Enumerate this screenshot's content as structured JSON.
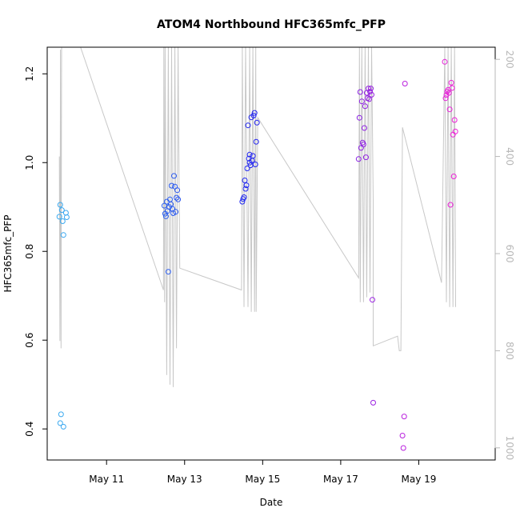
{
  "chart_data": {
    "type": "scatter",
    "title": "ATOM4 Northbound HFC365mfc_PFP",
    "xlabel": "Date",
    "ylabel": "HFC365mfc_PFP",
    "xlim": [
      "2016-05-09T11:30",
      "2016-05-20T23:00"
    ],
    "ylim": [
      0.33,
      1.26
    ],
    "y_ticks": [
      0.4,
      0.6,
      0.8,
      1.0,
      1.2
    ],
    "y_tick_labels": [
      "0.4",
      "0.6",
      "0.8",
      "1.0",
      "1.2"
    ],
    "x_ticks": [
      "2016-05-11",
      "2016-05-13",
      "2016-05-15",
      "2016-05-17",
      "2016-05-19"
    ],
    "x_tick_labels": [
      "May 11",
      "May 13",
      "May 15",
      "May 17",
      "May 19"
    ],
    "y2_ticks": [
      200,
      400,
      600,
      800,
      1000
    ],
    "y2_tick_labels": [
      "200",
      "400",
      "600",
      "800",
      "1000"
    ],
    "y2lim": [
      1025,
      175
    ],
    "grid": false,
    "legend": "none",
    "colors": {
      "line": "#c8c8c8",
      "point_gradient": [
        "#3aaaf0",
        "#2020f0",
        "#f020d8"
      ],
      "axis": "#000000",
      "right_axis": "#b8b8b8"
    },
    "points": [
      [
        "2016-05-09T19:00",
        0.878
      ],
      [
        "2016-05-09T19:30",
        0.905
      ],
      [
        "2016-05-09T20:30",
        0.893
      ],
      [
        "2016-05-09T21:00",
        0.868
      ],
      [
        "2016-05-09T21:30",
        0.837
      ],
      [
        "2016-05-09T23:00",
        0.887
      ],
      [
        "2016-05-09T23:30",
        0.877
      ],
      [
        "2016-05-09T20:00",
        0.433
      ],
      [
        "2016-05-09T19:30",
        0.413
      ],
      [
        "2016-05-09T21:30",
        0.405
      ],
      [
        "2016-05-12T11:30",
        0.903
      ],
      [
        "2016-05-12T12:00",
        0.885
      ],
      [
        "2016-05-12T12:30",
        0.879
      ],
      [
        "2016-05-12T13:00",
        0.912
      ],
      [
        "2016-05-12T13:30",
        0.891
      ],
      [
        "2016-05-12T14:00",
        0.754
      ],
      [
        "2016-05-12T14:30",
        0.9
      ],
      [
        "2016-05-12T15:00",
        0.917
      ],
      [
        "2016-05-12T15:30",
        0.906
      ],
      [
        "2016-05-12T16:00",
        0.948
      ],
      [
        "2016-05-12T16:30",
        0.896
      ],
      [
        "2016-05-12T17:00",
        0.886
      ],
      [
        "2016-05-12T17:30",
        0.97
      ],
      [
        "2016-05-12T18:00",
        0.946
      ],
      [
        "2016-05-12T18:30",
        0.889
      ],
      [
        "2016-05-12T19:00",
        0.921
      ],
      [
        "2016-05-12T19:30",
        0.938
      ],
      [
        "2016-05-12T20:00",
        0.917
      ],
      [
        "2016-05-14T11:30",
        0.912
      ],
      [
        "2016-05-14T12:00",
        0.918
      ],
      [
        "2016-05-14T12:30",
        0.922
      ],
      [
        "2016-05-14T13:00",
        0.96
      ],
      [
        "2016-05-14T13:30",
        0.941
      ],
      [
        "2016-05-14T14:00",
        0.949
      ],
      [
        "2016-05-14T14:30",
        0.987
      ],
      [
        "2016-05-14T15:00",
        1.084
      ],
      [
        "2016-05-14T15:30",
        1.009
      ],
      [
        "2016-05-14T16:00",
        1.018
      ],
      [
        "2016-05-14T16:30",
        0.994
      ],
      [
        "2016-05-14T17:00",
        1.102
      ],
      [
        "2016-05-14T17:30",
        1.005
      ],
      [
        "2016-05-14T18:00",
        1.015
      ],
      [
        "2016-05-14T18:30",
        1.106
      ],
      [
        "2016-05-14T19:00",
        1.112
      ],
      [
        "2016-05-14T19:30",
        0.996
      ],
      [
        "2016-05-14T20:00",
        1.047
      ],
      [
        "2016-05-14T20:30",
        1.09
      ],
      [
        "2016-05-14T16:00",
        1.0
      ],
      [
        "2016-05-17T11:00",
        1.008
      ],
      [
        "2016-05-17T11:30",
        1.101
      ],
      [
        "2016-05-17T12:00",
        1.159
      ],
      [
        "2016-05-17T12:30",
        1.033
      ],
      [
        "2016-05-17T13:00",
        1.138
      ],
      [
        "2016-05-17T13:30",
        1.045
      ],
      [
        "2016-05-17T14:00",
        1.041
      ],
      [
        "2016-05-17T14:30",
        1.078
      ],
      [
        "2016-05-17T15:00",
        1.127
      ],
      [
        "2016-05-17T15:30",
        1.012
      ],
      [
        "2016-05-17T16:00",
        1.157
      ],
      [
        "2016-05-17T16:30",
        1.145
      ],
      [
        "2016-05-17T17:00",
        1.167
      ],
      [
        "2016-05-17T17:30",
        1.143
      ],
      [
        "2016-05-17T18:00",
        1.16
      ],
      [
        "2016-05-17T18:30",
        1.167
      ],
      [
        "2016-05-17T19:00",
        1.153
      ],
      [
        "2016-05-17T19:30",
        0.691
      ],
      [
        "2016-05-17T20:00",
        0.459
      ],
      [
        "2016-05-18T14:00",
        0.385
      ],
      [
        "2016-05-18T15:00",
        0.428
      ],
      [
        "2016-05-18T14:30",
        0.357
      ],
      [
        "2016-05-18T15:30",
        1.178
      ],
      [
        "2016-05-19T16:00",
        1.227
      ],
      [
        "2016-05-19T16:30",
        1.145
      ],
      [
        "2016-05-19T17:00",
        1.152
      ],
      [
        "2016-05-19T17:30",
        1.16
      ],
      [
        "2016-05-19T18:00",
        1.164
      ],
      [
        "2016-05-19T18:30",
        1.157
      ],
      [
        "2016-05-19T19:00",
        1.12
      ],
      [
        "2016-05-19T19:30",
        0.905
      ],
      [
        "2016-05-19T20:00",
        1.18
      ],
      [
        "2016-05-19T20:30",
        1.168
      ],
      [
        "2016-05-19T21:00",
        1.063
      ],
      [
        "2016-05-19T21:30",
        0.969
      ],
      [
        "2016-05-19T22:00",
        1.096
      ],
      [
        "2016-05-19T22:30",
        1.07
      ]
    ],
    "secondary_line": [
      [
        "2016-05-09T19:00",
        400
      ],
      [
        "2016-05-09T19:20",
        780
      ],
      [
        "2016-05-09T19:40",
        180
      ],
      [
        "2016-05-09T20:00",
        795
      ],
      [
        "2016-05-09T20:20",
        175
      ],
      [
        "2016-05-10T08:00",
        175
      ],
      [
        "2016-05-12T11:00",
        675
      ],
      [
        "2016-05-12T11:15",
        175
      ],
      [
        "2016-05-12T11:40",
        700
      ],
      [
        "2016-05-12T12:00",
        175
      ],
      [
        "2016-05-12T13:00",
        850
      ],
      [
        "2016-05-12T14:00",
        175
      ],
      [
        "2016-05-12T15:00",
        870
      ],
      [
        "2016-05-12T16:00",
        175
      ],
      [
        "2016-05-12T17:00",
        875
      ],
      [
        "2016-05-12T18:00",
        175
      ],
      [
        "2016-05-12T19:00",
        795
      ],
      [
        "2016-05-12T20:00",
        175
      ],
      [
        "2016-05-12T21:00",
        630
      ],
      [
        "2016-05-14T11:00",
        675
      ],
      [
        "2016-05-14T11:30",
        175
      ],
      [
        "2016-05-14T12:30",
        710
      ],
      [
        "2016-05-14T13:30",
        175
      ],
      [
        "2016-05-14T15:00",
        710
      ],
      [
        "2016-05-14T16:00",
        175
      ],
      [
        "2016-05-14T17:00",
        720
      ],
      [
        "2016-05-14T18:00",
        175
      ],
      [
        "2016-05-14T19:00",
        720
      ],
      [
        "2016-05-14T19:45",
        175
      ],
      [
        "2016-05-14T20:00",
        720
      ],
      [
        "2016-05-14T21:00",
        320
      ],
      [
        "2016-05-17T11:00",
        650
      ],
      [
        "2016-05-17T11:30",
        175
      ],
      [
        "2016-05-17T12:00",
        700
      ],
      [
        "2016-05-17T13:00",
        175
      ],
      [
        "2016-05-17T14:00",
        700
      ],
      [
        "2016-05-17T15:00",
        175
      ],
      [
        "2016-05-17T16:00",
        690
      ],
      [
        "2016-05-17T17:00",
        175
      ],
      [
        "2016-05-17T18:00",
        680
      ],
      [
        "2016-05-17T19:00",
        175
      ],
      [
        "2016-05-17T20:00",
        490
      ],
      [
        "2016-05-17T20:00",
        790
      ],
      [
        "2016-05-18T11:00",
        770
      ],
      [
        "2016-05-18T12:00",
        800
      ],
      [
        "2016-05-18T13:00",
        800
      ],
      [
        "2016-05-18T14:00",
        340
      ],
      [
        "2016-05-19T14:00",
        660
      ],
      [
        "2016-05-19T16:00",
        175
      ],
      [
        "2016-05-19T17:00",
        700
      ],
      [
        "2016-05-19T18:00",
        175
      ],
      [
        "2016-05-19T19:00",
        710
      ],
      [
        "2016-05-19T20:00",
        175
      ],
      [
        "2016-05-19T21:00",
        710
      ],
      [
        "2016-05-19T22:00",
        175
      ],
      [
        "2016-05-19T22:40",
        710
      ]
    ]
  }
}
